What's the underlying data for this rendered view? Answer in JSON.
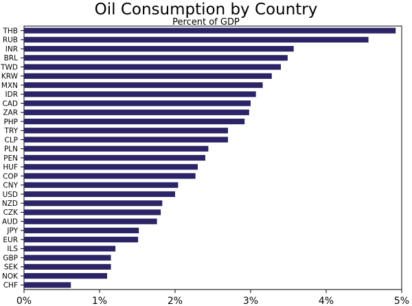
{
  "chart_data": {
    "type": "bar",
    "orientation": "horizontal",
    "title": "Oil Consumption by Country",
    "subtitle": "Percent of GDP",
    "xlabel": "",
    "ylabel": "",
    "xlim": [
      0,
      5
    ],
    "x_ticks": [
      "0%",
      "1%",
      "2%",
      "3%",
      "4%",
      "5%"
    ],
    "grid": false,
    "bar_color": "#2b2466",
    "categories": [
      "THB",
      "RUB",
      "INR",
      "BRL",
      "TWD",
      "KRW",
      "MXN",
      "IDR",
      "CAD",
      "ZAR",
      "PHP",
      "TRY",
      "CLP",
      "PLN",
      "PEN",
      "HUF",
      "COP",
      "CNY",
      "USD",
      "NZD",
      "CZK",
      "AUD",
      "JPY",
      "EUR",
      "ILS",
      "GBP",
      "SEK",
      "NOK",
      "CHF"
    ],
    "values": [
      4.92,
      4.56,
      3.57,
      3.49,
      3.4,
      3.28,
      3.16,
      3.07,
      3.0,
      2.98,
      2.92,
      2.7,
      2.7,
      2.44,
      2.4,
      2.3,
      2.27,
      2.04,
      2.0,
      1.83,
      1.81,
      1.76,
      1.52,
      1.51,
      1.21,
      1.15,
      1.15,
      1.1,
      0.62
    ]
  }
}
